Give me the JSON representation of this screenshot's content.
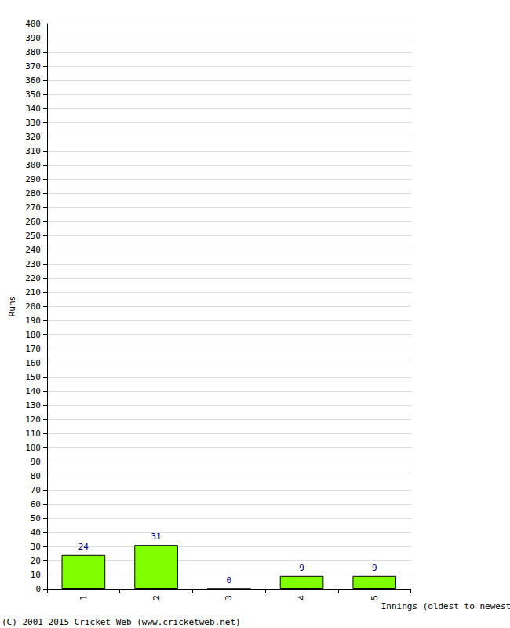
{
  "chart_data": {
    "type": "bar",
    "x_label": "Innings (oldest to newest)",
    "y_label": "Runs",
    "categories": [
      "1",
      "2",
      "3",
      "4",
      "5"
    ],
    "values": [
      24,
      31,
      0,
      9,
      9
    ],
    "color": "#80ff00",
    "ylim": [
      0,
      400
    ],
    "yticks": [
      0,
      10,
      20,
      30,
      40,
      50,
      60,
      70,
      80,
      90,
      100,
      110,
      120,
      130,
      140,
      150,
      160,
      170,
      180,
      190,
      200,
      210,
      220,
      230,
      240,
      250,
      260,
      270,
      280,
      290,
      300,
      310,
      320,
      330,
      340,
      350,
      360,
      370,
      380,
      390,
      400
    ],
    "grid": true,
    "data_labels": true,
    "annotations": [
      "(C) 2001-2015 Cricket Web (www.cricketweb.net)"
    ]
  }
}
